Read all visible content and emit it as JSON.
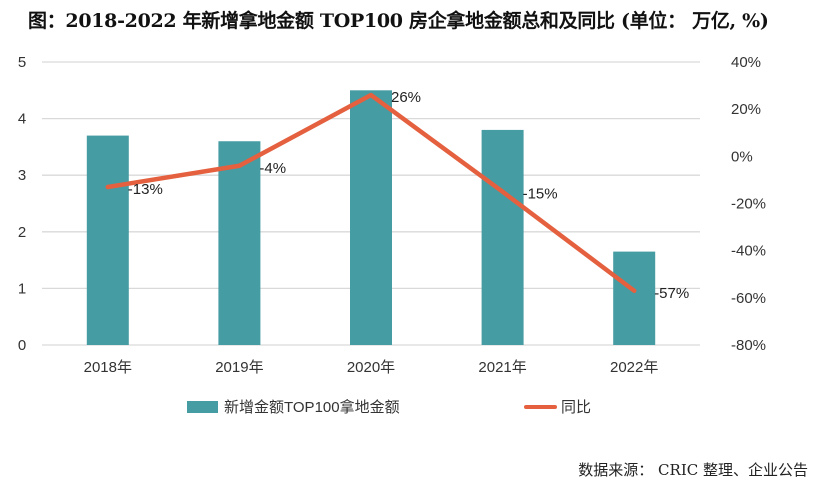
{
  "title": "图：2018-2022 年新增拿地金额 TOP100 房企拿地金额总和及同比 (单位： 万亿, %)",
  "source": "数据来源： CRIC 整理、企业公告",
  "colors": {
    "bar": "#469ca3",
    "line": "#e4603f",
    "grid": "#d9d9d9"
  },
  "chart_data": {
    "type": "bar+line",
    "title": "图：2018-2022 年新增拿地金额 TOP100 房企拿地金额总和及同比 (单位： 万亿, %)",
    "categories": [
      "2018年",
      "2019年",
      "2020年",
      "2021年",
      "2022年"
    ],
    "series": [
      {
        "name": "新增金额TOP100拿地金额",
        "type": "bar",
        "axis": "left",
        "values": [
          3.7,
          3.6,
          4.5,
          3.8,
          1.65
        ]
      },
      {
        "name": "同比",
        "type": "line",
        "axis": "right",
        "values": [
          -13,
          -4,
          26,
          -15,
          -57
        ],
        "labels": [
          "-13%",
          "-4%",
          "26%",
          "-15%",
          "-57%"
        ]
      }
    ],
    "y_left": {
      "range": [
        0,
        5
      ],
      "ticks": [
        "0",
        "1",
        "2",
        "3",
        "4",
        "5"
      ],
      "label": ""
    },
    "y_right": {
      "range": [
        -80,
        40
      ],
      "ticks": [
        "-80%",
        "-60%",
        "-40%",
        "-20%",
        "0%",
        "20%",
        "40%"
      ],
      "label": ""
    },
    "grid": true,
    "legend_position": "bottom",
    "legend": [
      "新增金额TOP100拿地金额",
      "同比"
    ]
  }
}
